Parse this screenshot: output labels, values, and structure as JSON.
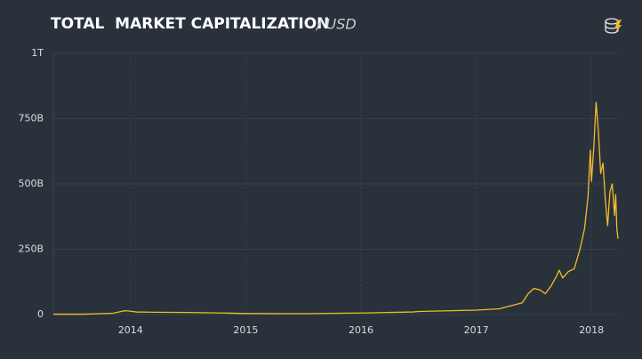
{
  "chart_data": {
    "type": "line",
    "title": "TOTAL  MARKET CAPITALIZATION",
    "subtitle": "/ USD",
    "x": [
      2013.33,
      2013.6,
      2013.85,
      2013.93,
      2013.96,
      2014.05,
      2014.2,
      2014.5,
      2014.8,
      2015.0,
      2015.5,
      2016.0,
      2016.45,
      2016.5,
      2017.0,
      2017.2,
      2017.4,
      2017.45,
      2017.5,
      2017.55,
      2017.6,
      2017.65,
      2017.7,
      2017.72,
      2017.75,
      2017.8,
      2017.85,
      2017.9,
      2017.94,
      2017.97,
      2017.99,
      2018.0,
      2018.02,
      2018.04,
      2018.06,
      2018.08,
      2018.1,
      2018.12,
      2018.14,
      2018.16,
      2018.18,
      2018.2,
      2018.21,
      2018.22,
      2018.23
    ],
    "series": [
      {
        "color": "#f3ba2f",
        "values": [
          1.5,
          1.5,
          5,
          13,
          15,
          10,
          9,
          8,
          6,
          4,
          3.5,
          6,
          10,
          12,
          17,
          22,
          45,
          80,
          100,
          95,
          80,
          110,
          150,
          170,
          140,
          165,
          175,
          250,
          330,
          450,
          630,
          510,
          640,
          813,
          700,
          540,
          580,
          440,
          340,
          470,
          500,
          380,
          460,
          330,
          290
        ]
      }
    ],
    "xlim": [
      2013.33,
      2018.23
    ],
    "xticks": [
      2014,
      2015,
      2016,
      2017,
      2018
    ],
    "ylim": [
      0,
      1000
    ],
    "yticks": [
      0,
      {
        "value": 250,
        "label": "250B"
      },
      {
        "value": 500,
        "label": "500B"
      },
      {
        "value": 750,
        "label": "750B"
      },
      {
        "value": 1000,
        "label": "1T"
      }
    ],
    "grid": true
  }
}
